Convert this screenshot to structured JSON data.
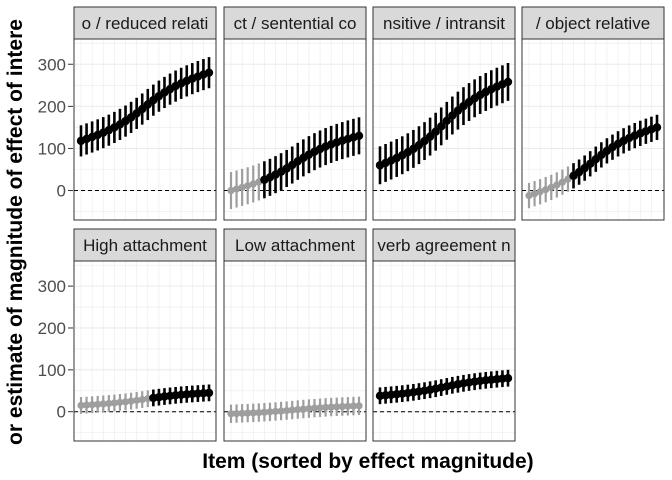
{
  "chart_data": {
    "type": "scatter",
    "chart_kind": "faceted point-range plot",
    "xlabel": "Item (sorted by effect magnitude)",
    "ylabel": "or estimate of magnitude of effect of intere",
    "ylim": [
      -70,
      360
    ],
    "yticks": [
      0,
      100,
      200,
      300
    ],
    "reference_line": {
      "y": 0,
      "style": "dashed"
    },
    "grid": true,
    "layout": {
      "rows": 2,
      "cols": 4
    },
    "colors": {
      "significant": "#000000",
      "not_significant": "#9e9e9e",
      "strip_fill": "#d9d9d9",
      "panel_border": "#333333",
      "grid": "#ebebeb"
    },
    "facets": [
      {
        "label": "o / reduced relati",
        "n_items": 24,
        "y_start": 118,
        "y_end": 280,
        "ci_half": 37,
        "n_grey": 0
      },
      {
        "label": "ct / sentential co",
        "n_items": 24,
        "y_start": 0,
        "y_end": 130,
        "ci_half": 44,
        "n_grey": 6
      },
      {
        "label": "nsitive / intransit",
        "n_items": 24,
        "y_start": 60,
        "y_end": 258,
        "ci_half": 45,
        "n_grey": 0
      },
      {
        "label": "/ object relative",
        "n_items": 24,
        "y_start": -12,
        "y_end": 150,
        "ci_half": 30,
        "n_grey": 8
      },
      {
        "label": "High attachment",
        "n_items": 24,
        "y_start": 15,
        "y_end": 45,
        "ci_half": 20,
        "n_grey": 13
      },
      {
        "label": "Low attachment",
        "n_items": 24,
        "y_start": -5,
        "y_end": 14,
        "ci_half": 22,
        "n_grey": 24
      },
      {
        "label": "verb agreement n",
        "n_items": 24,
        "y_start": 38,
        "y_end": 80,
        "ci_half": 20,
        "n_grey": 0
      }
    ]
  }
}
